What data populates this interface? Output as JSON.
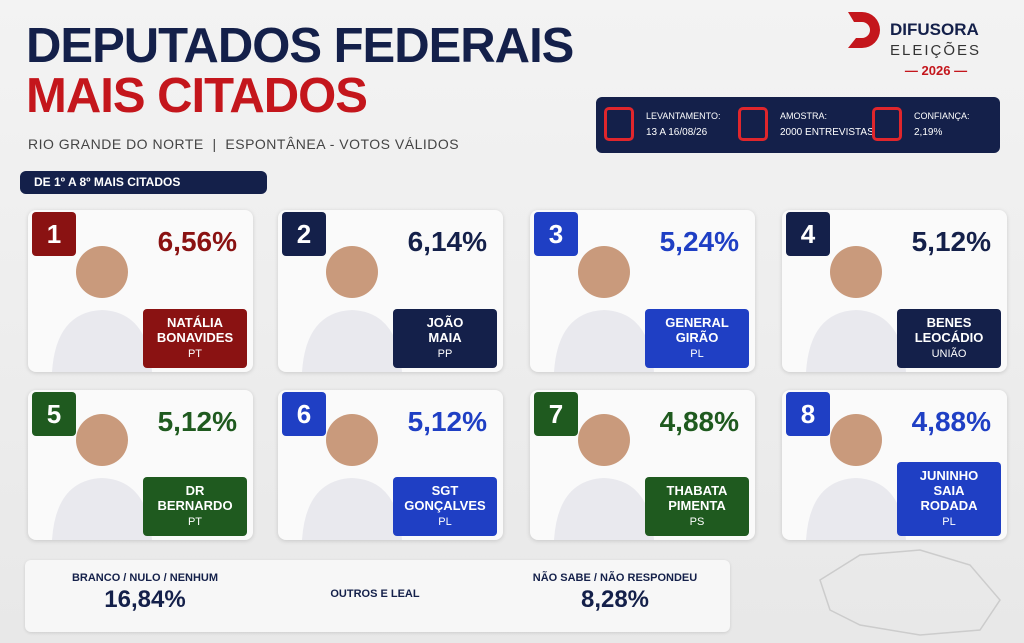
{
  "header": {
    "title_line1": "DEPUTADOS FEDERAIS",
    "title_line2": "MAIS CITADOS",
    "subtitle": "RIO GRANDE DO NORTE  |  ESPONTÂNEA - VOTOS VÁLIDOS",
    "tag": "DE 1º A 8º MAIS CITADOS"
  },
  "brand": {
    "name": "DIFUSORA",
    "sub": "ELEIÇÕES",
    "year": "2026"
  },
  "info": [
    {
      "label": "LEVANTAMENTO:",
      "value": "13 A 16/08/26"
    },
    {
      "label": "AMOSTRA:",
      "value": "2000 ENTREVISTAS"
    },
    {
      "label": "CONFIANÇA:",
      "value": "2,19%"
    }
  ],
  "candidates": [
    {
      "rank": 1,
      "percent": "6,56%",
      "name": [
        "NATÁLIA",
        "BONAVIDES"
      ],
      "party": "PT",
      "color": "#8a1212"
    },
    {
      "rank": 2,
      "percent": "6,14%",
      "name": [
        "JOÃO",
        "MAIA"
      ],
      "party": "PP",
      "color": "#14204a"
    },
    {
      "rank": 3,
      "percent": "5,24%",
      "name": [
        "GENERAL",
        "GIRÃO"
      ],
      "party": "PL",
      "color": "#1f3fc4"
    },
    {
      "rank": 4,
      "percent": "5,12%",
      "name": [
        "BENES",
        "LEOCÁDIO"
      ],
      "party": "UNIÃO",
      "color": "#14204a"
    },
    {
      "rank": 5,
      "percent": "5,12%",
      "name": [
        "DR",
        "BERNARDO"
      ],
      "party": "PT",
      "color": "#1f5a1f"
    },
    {
      "rank": 6,
      "percent": "5,12%",
      "name": [
        "SGT",
        "GONÇALVES"
      ],
      "party": "PL",
      "color": "#1f3fc4"
    },
    {
      "rank": 7,
      "percent": "4,88%",
      "name": [
        "THABATA",
        "PIMENTA"
      ],
      "party": "PS",
      "color": "#1f5a1f"
    },
    {
      "rank": 8,
      "percent": "4,88%",
      "name": [
        "JUNINHO",
        "SAIA",
        "RODADA"
      ],
      "party": "PL",
      "color": "#1f3fc4"
    }
  ],
  "bottom": [
    {
      "label": "BRANCO / NULO / NENHUM",
      "value": "16,84%"
    },
    {
      "label": "OUTROS E LEAL"
    },
    {
      "label": "NÃO SABE / NÃO RESPONDEU",
      "value": "8,28%"
    }
  ]
}
